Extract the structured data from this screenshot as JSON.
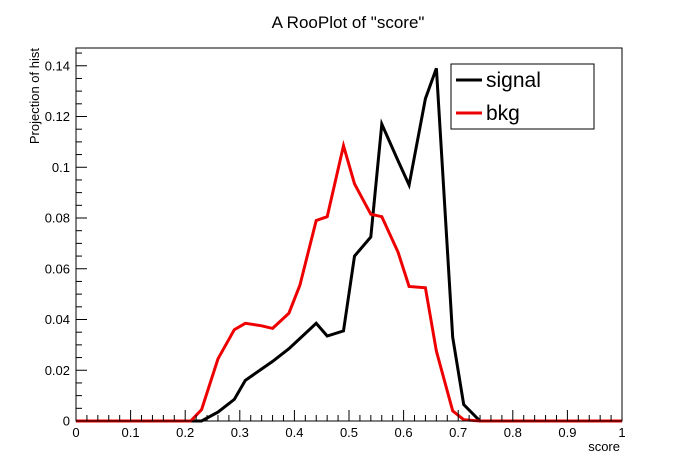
{
  "chart_data": {
    "type": "line",
    "title": "A RooPlot of \"score\"",
    "xlabel": "score",
    "ylabel": "Projection of hist",
    "xlim": [
      0,
      1
    ],
    "ylim": [
      0,
      0.147
    ],
    "grid": false,
    "legend_position": "top-right",
    "x_ticks": [
      0,
      0.1,
      0.2,
      0.3,
      0.4,
      0.5,
      0.6,
      0.7,
      0.8,
      0.9,
      1
    ],
    "x_tick_labels": [
      "0",
      "0.1",
      "0.2",
      "0.3",
      "0.4",
      "0.5",
      "0.6",
      "0.7",
      "0.8",
      "0.9",
      "1"
    ],
    "y_ticks": [
      0,
      0.02,
      0.04,
      0.06,
      0.08,
      0.1,
      0.12,
      0.14
    ],
    "y_tick_labels": [
      "0",
      "0.02",
      "0.04",
      "0.06",
      "0.08",
      "0.1",
      "0.12",
      "0.14"
    ],
    "series": [
      {
        "name": "signal",
        "color": "#000000",
        "x": [
          0,
          0.21,
          0.23,
          0.26,
          0.29,
          0.31,
          0.34,
          0.36,
          0.39,
          0.41,
          0.44,
          0.46,
          0.49,
          0.51,
          0.54,
          0.56,
          0.59,
          0.61,
          0.64,
          0.66,
          0.69,
          0.71,
          0.74,
          1
        ],
        "y": [
          0,
          0,
          0,
          0.0035,
          0.0085,
          0.016,
          0.0205,
          0.0235,
          0.0285,
          0.0325,
          0.0385,
          0.0335,
          0.0355,
          0.065,
          0.0725,
          0.117,
          0.1025,
          0.093,
          0.127,
          0.139,
          0.033,
          0.0065,
          0,
          0
        ]
      },
      {
        "name": "bkg",
        "color": "#ee0000",
        "x": [
          0,
          0.21,
          0.23,
          0.26,
          0.29,
          0.31,
          0.34,
          0.36,
          0.39,
          0.41,
          0.44,
          0.46,
          0.49,
          0.51,
          0.54,
          0.56,
          0.59,
          0.61,
          0.64,
          0.66,
          0.69,
          0.71,
          0.74,
          1
        ],
        "y": [
          0,
          0,
          0.0045,
          0.0245,
          0.036,
          0.0385,
          0.0375,
          0.0365,
          0.0425,
          0.0535,
          0.079,
          0.0805,
          0.1085,
          0.0935,
          0.0815,
          0.0805,
          0.0665,
          0.053,
          0.0525,
          0.0275,
          0.004,
          0.0005,
          0,
          0
        ]
      }
    ]
  }
}
